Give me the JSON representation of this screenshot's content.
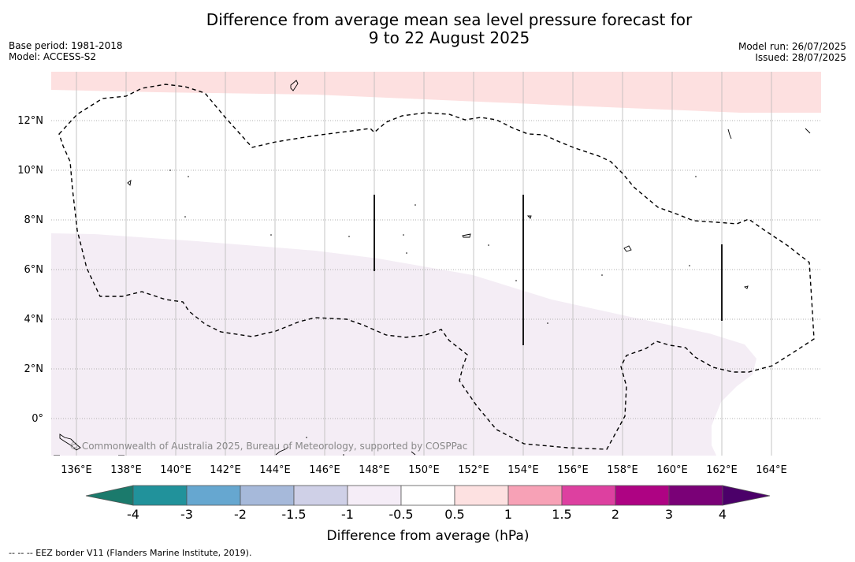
{
  "title": {
    "line1": "Difference from average mean sea level pressure forecast for",
    "line2": "9 to 22 August 2025"
  },
  "meta_left": {
    "base_period": "Base period: 1981-2018",
    "model": "Model: ACCESS-S2"
  },
  "meta_right": {
    "model_run": "Model run: 26/07/2025",
    "issued": "Issued: 28/07/2025"
  },
  "map": {
    "lat_labels": [
      "12°N",
      "10°N",
      "8°N",
      "6°N",
      "4°N",
      "2°N",
      "0°"
    ],
    "lon_labels": [
      "136°E",
      "138°E",
      "140°E",
      "142°E",
      "144°E",
      "146°E",
      "148°E",
      "150°E",
      "152°E",
      "154°E",
      "156°E",
      "158°E",
      "160°E",
      "162°E",
      "164°E"
    ],
    "copyright": "© Commonwealth of Australia 2025, Bureau of Meteorology, supported by COSPPac",
    "shading": {
      "north_band": "0.5 to 1",
      "south_region": "-1 to -0.5"
    }
  },
  "colorbar": {
    "ticks": [
      "-4",
      "-3",
      "-2",
      "-1.5",
      "-1",
      "-0.5",
      "0.5",
      "1",
      "1.5",
      "2",
      "3",
      "4"
    ],
    "colors": {
      "below_min": "#1b7a6c",
      "bins": [
        "#21929b",
        "#66a7d0",
        "#a6b9da",
        "#cfd0e7",
        "#f5edf7",
        "#ffffff",
        "#fde1e1",
        "#f7a1b6",
        "#dd40a0",
        "#ae0383",
        "#7a0177"
      ],
      "above_max": "#4b0069"
    },
    "label": "Difference from average (hPa)"
  },
  "legend_note": "-- -- -- EEZ border V11 (Flanders Marine Institute, 2019)."
}
